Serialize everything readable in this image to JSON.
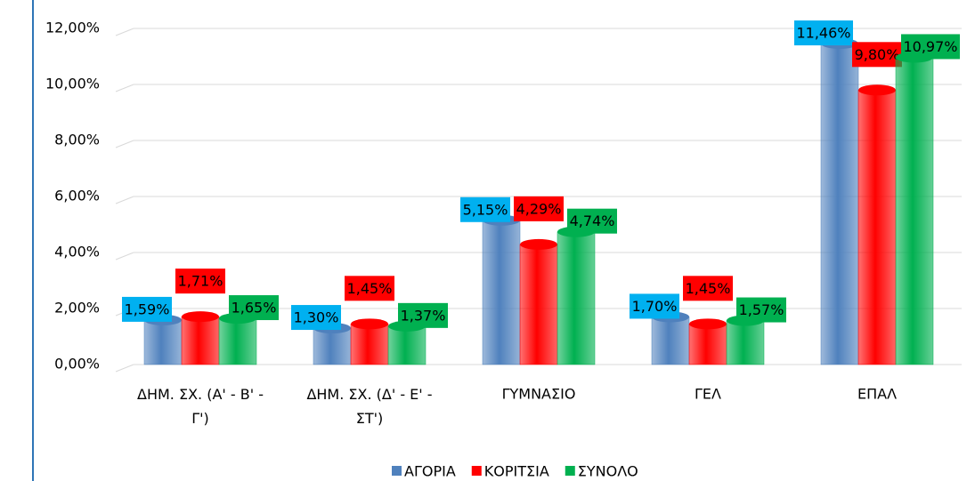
{
  "chart_data": {
    "type": "bar",
    "categories": [
      "ΔΗΜ. ΣΧ. (Α' - Β' - Γ')",
      "ΔΗΜ. ΣΧ. (Δ' - Ε' - ΣΤ')",
      "ΓΥΜΝΑΣΙΟ",
      "ΓΕΛ",
      "ΕΠΑΛ"
    ],
    "series": [
      {
        "name": "ΑΓΟΡΙΑ",
        "color": "#4f81bd",
        "label_color": "#00b0f0",
        "values": [
          1.59,
          1.3,
          5.15,
          1.7,
          11.46
        ],
        "value_labels": [
          "1,59%",
          "1,30%",
          "5,15%",
          "1,70%",
          "11,46%"
        ]
      },
      {
        "name": "ΚΟΡΙΤΣΙΑ",
        "color": "#ff0000",
        "label_color": "#ff0000",
        "values": [
          1.71,
          1.45,
          4.29,
          1.45,
          9.8
        ],
        "value_labels": [
          "1,71%",
          "1,45%",
          "4,29%",
          "1,45%",
          "9,80%"
        ]
      },
      {
        "name": "ΣΥΝΟΛΟ",
        "color": "#00b050",
        "label_color": "#00b050",
        "values": [
          1.65,
          1.37,
          4.74,
          1.57,
          10.97
        ],
        "value_labels": [
          "1,65%",
          "1,37%",
          "4,74%",
          "1,57%",
          "10,97%"
        ]
      }
    ],
    "ylim": [
      0,
      12
    ],
    "yticks": [
      {
        "value": 0,
        "label": "0,00%"
      },
      {
        "value": 2,
        "label": "2,00%"
      },
      {
        "value": 4,
        "label": "4,00%"
      },
      {
        "value": 6,
        "label": "6,00%"
      },
      {
        "value": 8,
        "label": "8,00%"
      },
      {
        "value": 10,
        "label": "10,00%"
      },
      {
        "value": 12,
        "label": "12,00%"
      }
    ],
    "grid": true,
    "legend": "bottom"
  }
}
